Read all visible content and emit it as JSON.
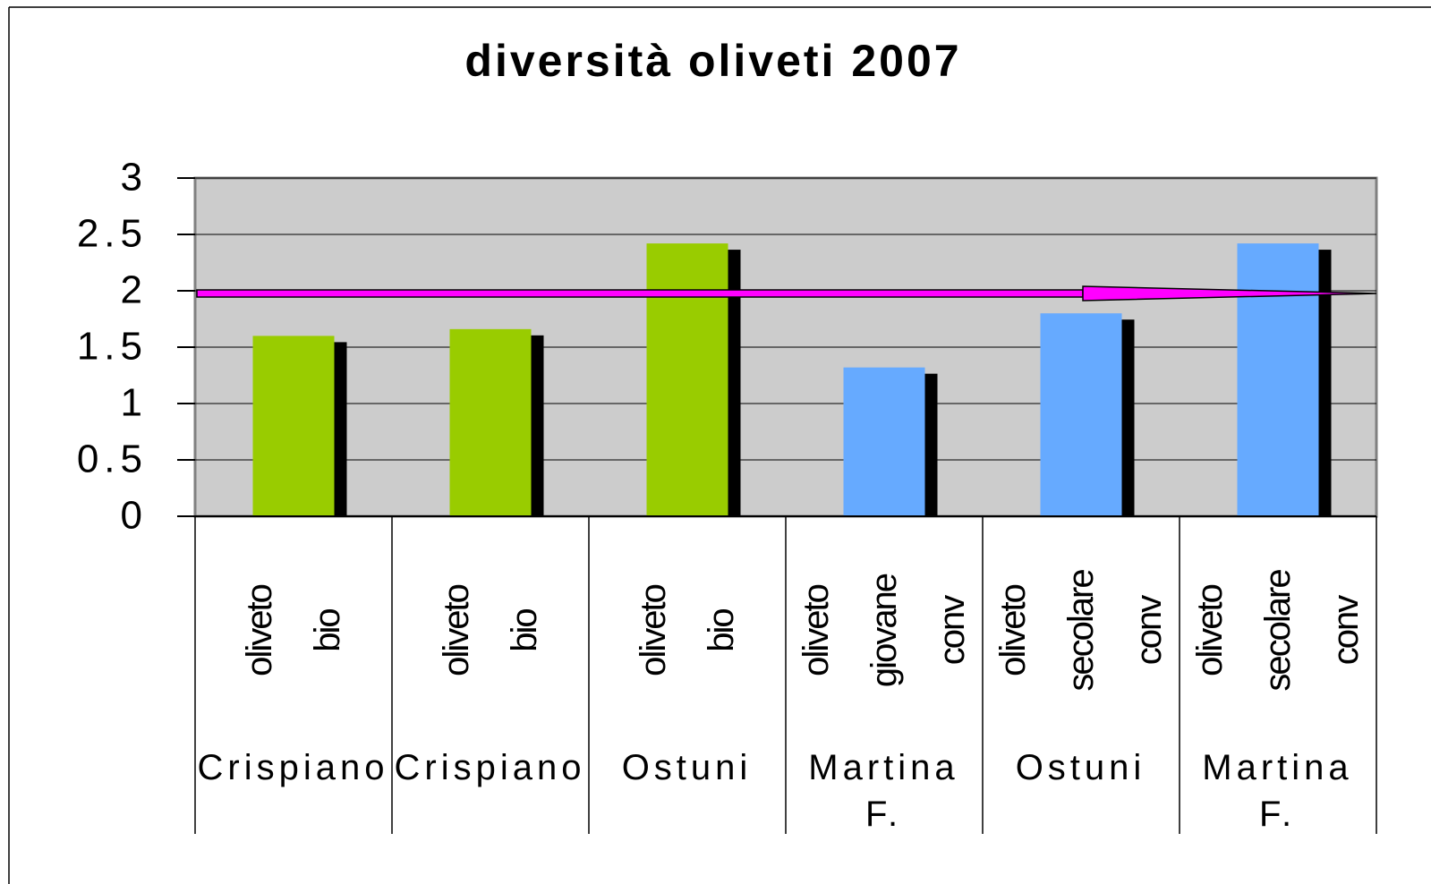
{
  "chart_data": {
    "type": "bar",
    "title": "diversità oliveti 2007",
    "categories": [
      "Crispiano",
      "Crispiano",
      "Ostuni",
      "Martina F.",
      "Ostuni",
      "Martina F."
    ],
    "subcategories": [
      "oliveto bio",
      "oliveto bio",
      "oliveto bio",
      "oliveto giovane conv",
      "oliveto secolare conv",
      "oliveto secolare conv"
    ],
    "values": [
      1.6,
      1.66,
      2.42,
      1.32,
      1.8,
      2.42
    ],
    "colors": [
      "#99cc00",
      "#99cc00",
      "#99cc00",
      "#66aaff",
      "#66aaff",
      "#66aaff"
    ],
    "ylim": [
      0,
      3
    ],
    "yticks": [
      0,
      0.5,
      1,
      1.5,
      2,
      2.5,
      3
    ],
    "grid": true
  }
}
